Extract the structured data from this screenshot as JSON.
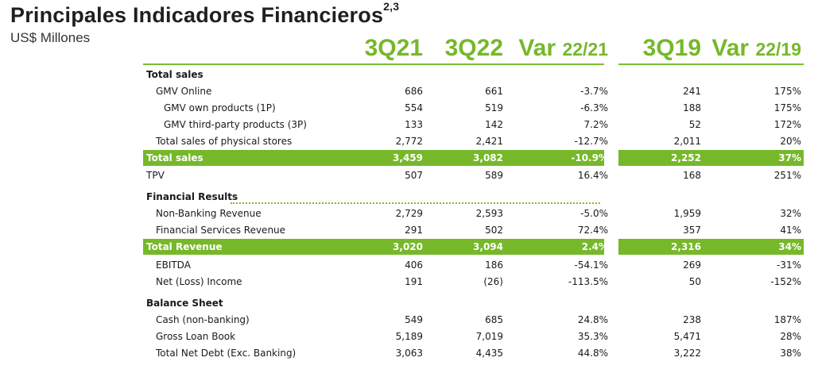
{
  "header": {
    "title": "Principales Indicadores Financieros",
    "title_sup": "2,3",
    "subtitle": "US$ Millones",
    "columns": [
      {
        "main": "3Q21",
        "suffix": ""
      },
      {
        "main": "3Q22",
        "suffix": ""
      },
      {
        "main": "Var ",
        "suffix": "22/21"
      },
      {
        "main": "3Q19",
        "suffix": ""
      },
      {
        "main": "Var ",
        "suffix": "22/19"
      }
    ]
  },
  "colors": {
    "accent": "#76b82a"
  },
  "rows": [
    {
      "label": "Total sales",
      "type": "section",
      "values": [
        "",
        "",
        "",
        "",
        ""
      ]
    },
    {
      "label": "GMV Online",
      "type": "item",
      "values": [
        "686",
        "661",
        "-3.7%",
        "241",
        "175%"
      ]
    },
    {
      "label": "GMV own products (1P)",
      "type": "sub",
      "values": [
        "554",
        "519",
        "-6.3%",
        "188",
        "175%"
      ]
    },
    {
      "label": "GMV third-party products (3P)",
      "type": "sub",
      "values": [
        "133",
        "142",
        "7.2%",
        "52",
        "172%"
      ]
    },
    {
      "label": "Total sales of physical stores",
      "type": "item",
      "values": [
        "2,772",
        "2,421",
        "-12.7%",
        "2,011",
        "20%"
      ]
    },
    {
      "label": "Total sales",
      "type": "highlight",
      "values": [
        "3,459",
        "3,082",
        "-10.9%",
        "2,252",
        "37%"
      ]
    },
    {
      "label": "TPV",
      "type": "top",
      "values": [
        "507",
        "589",
        "16.4%",
        "168",
        "251%"
      ]
    },
    {
      "label": "Financial Results",
      "type": "section",
      "values": [
        "",
        "",
        "",
        "",
        ""
      ]
    },
    {
      "label": "Non-Banking Revenue",
      "type": "item",
      "values": [
        "2,729",
        "2,593",
        "-5.0%",
        "1,959",
        "32%"
      ]
    },
    {
      "label": "Financial Services Revenue",
      "type": "item",
      "values": [
        "291",
        "502",
        "72.4%",
        "357",
        "41%"
      ]
    },
    {
      "label": "Total Revenue",
      "type": "highlight",
      "values": [
        "3,020",
        "3,094",
        "2.4%",
        "2,316",
        "34%"
      ]
    },
    {
      "label": "EBITDA",
      "type": "item",
      "values": [
        "406",
        "186",
        "-54.1%",
        "269",
        "-31%"
      ]
    },
    {
      "label": "Net (Loss) Income",
      "type": "item",
      "values": [
        "191",
        "(26)",
        "-113.5%",
        "50",
        "-152%"
      ]
    },
    {
      "label": "Balance Sheet",
      "type": "section",
      "values": [
        "",
        "",
        "",
        "",
        ""
      ]
    },
    {
      "label": "Cash (non-banking)",
      "type": "item",
      "values": [
        "549",
        "685",
        "24.8%",
        "238",
        "187%"
      ]
    },
    {
      "label": "Gross Loan Book",
      "type": "item",
      "values": [
        "5,189",
        "7,019",
        "35.3%",
        "5,471",
        "28%"
      ]
    },
    {
      "label": "Total Net Debt (Exc. Banking)",
      "type": "item",
      "values": [
        "3,063",
        "4,435",
        "44.8%",
        "3,222",
        "38%"
      ]
    }
  ]
}
